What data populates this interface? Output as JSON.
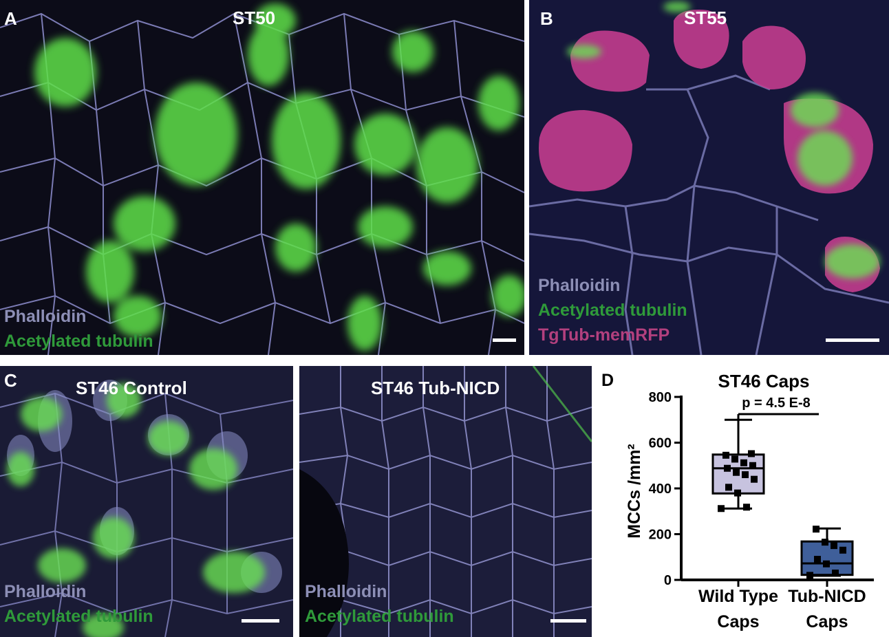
{
  "panels": {
    "a": {
      "letter": "A",
      "title": "ST50",
      "legend": [
        "Phalloidin",
        "Acetylated tubulin"
      ]
    },
    "b": {
      "letter": "B",
      "title": "ST55",
      "legend": [
        "Phalloidin",
        "Acetylated tubulin",
        "TgTub-memRFP"
      ]
    },
    "c": {
      "letter": "C",
      "title": "ST46 Control",
      "legend": [
        "Phalloidin",
        "Acetylated tubulin"
      ]
    },
    "c2": {
      "title": "ST46 Tub-NICD",
      "legend": [
        "Phalloidin",
        "Acetylated tubulin"
      ]
    },
    "d": {
      "letter": "D"
    }
  },
  "colors": {
    "phalloidin": "#8d8fb6",
    "acetylated_tubulin": "#2f9a3a",
    "rfp": "#b3407e",
    "wild_type_box": "#c7c3df",
    "nicd_box": "#3f5f9a"
  },
  "chart_data": {
    "type": "box",
    "title": "ST46 Caps",
    "ylabel": "MCCs /mm²",
    "xlabel": "",
    "ylim": [
      0,
      800
    ],
    "yticks": [
      0,
      200,
      400,
      600,
      800
    ],
    "categories": [
      "Wild Type Caps",
      "Tub-NICD Caps"
    ],
    "category_lines": [
      [
        "Wild Type",
        "Caps"
      ],
      [
        "Tub-NICD",
        "Caps"
      ]
    ],
    "boxes": [
      {
        "name": "Wild Type Caps",
        "min": 312,
        "q1": 378,
        "median": 488,
        "q3": 548,
        "max": 700,
        "points": [
          312,
          318,
          380,
          405,
          440,
          460,
          470,
          488,
          500,
          512,
          528,
          545,
          552
        ]
      },
      {
        "name": "Tub-NICD Caps",
        "min": 18,
        "q1": 22,
        "median": 72,
        "q3": 168,
        "max": 225,
        "points": [
          20,
          30,
          70,
          90,
          130,
          150,
          165,
          222
        ]
      }
    ],
    "annotation": "p = 4.5 E-8"
  }
}
